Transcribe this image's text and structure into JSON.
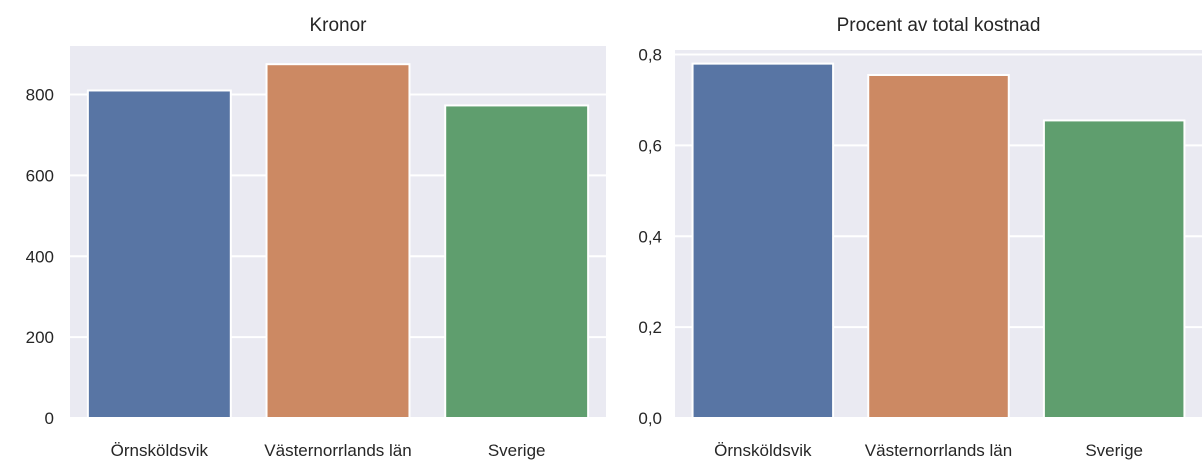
{
  "chart_data": [
    {
      "type": "bar",
      "title": "Kronor",
      "xlabel": "",
      "ylabel": "",
      "categories": [
        "Örnsköldsvik",
        "Västernorrlands län",
        "Sverige"
      ],
      "values": [
        810,
        875,
        773
      ],
      "colors": [
        "#5875a4",
        "#cc8963",
        "#5f9e6e"
      ],
      "ylim": [
        0,
        920
      ],
      "yticks": [
        0,
        200,
        400,
        600,
        800
      ],
      "ytick_labels": [
        "0",
        "200",
        "400",
        "600",
        "800"
      ],
      "grid": true,
      "background": "#eaeaf2",
      "legend": "none"
    },
    {
      "type": "bar",
      "title": "Procent av total kostnad",
      "xlabel": "",
      "ylabel": "",
      "categories": [
        "Örnsköldsvik",
        "Västernorrlands län",
        "Sverige"
      ],
      "values": [
        0.78,
        0.755,
        0.655
      ],
      "colors": [
        "#5875a4",
        "#cc8963",
        "#5f9e6e"
      ],
      "ylim": [
        0,
        0.81
      ],
      "yticks": [
        0,
        0.2,
        0.4,
        0.6,
        0.8
      ],
      "ytick_labels": [
        "0,0",
        "0,2",
        "0,4",
        "0,6",
        "0,8"
      ],
      "grid": true,
      "background": "#eaeaf2",
      "legend": "none"
    }
  ]
}
